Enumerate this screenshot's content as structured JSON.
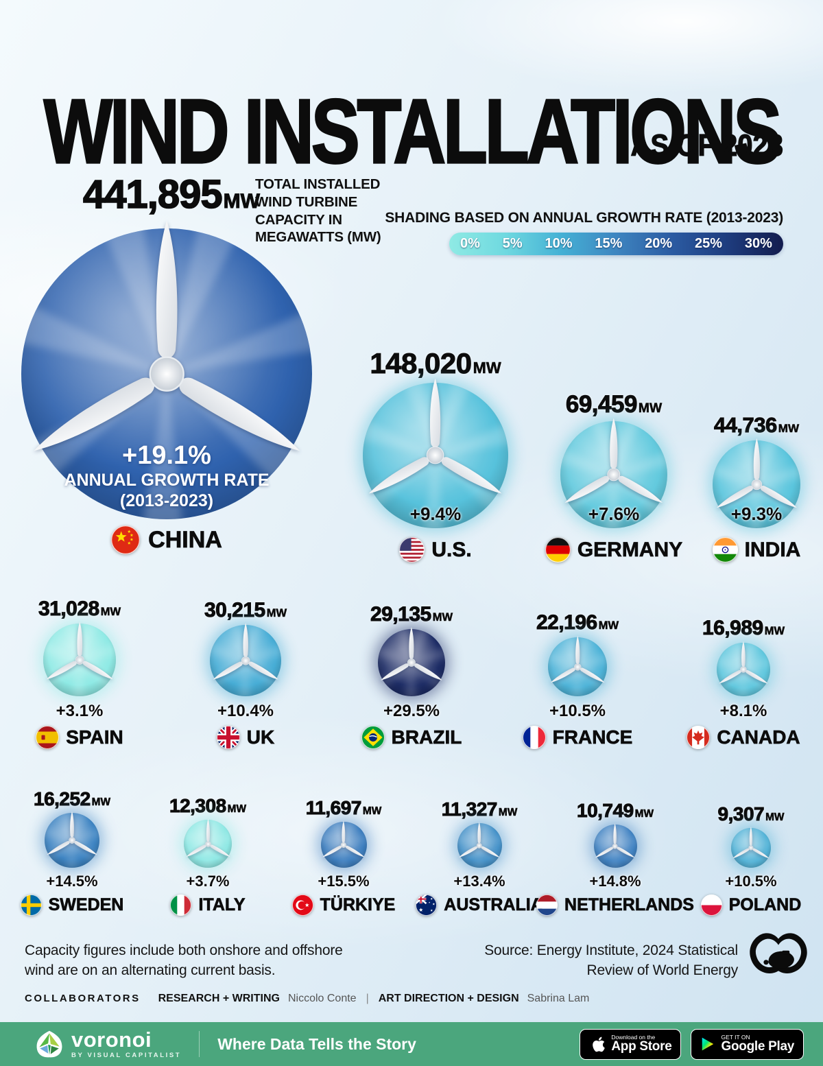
{
  "header": {
    "title": "WIND INSTALLATIONS",
    "subtitle": "AS OF 2023"
  },
  "annotation": {
    "capacity_note": "TOTAL INSTALLED WIND TURBINE CAPACITY IN MEGAWATTS (MW)"
  },
  "legend": {
    "label": "SHADING BASED ON ANNUAL GROWTH RATE (2013-2023)",
    "gradient": [
      "#8feae4",
      "#6fd9e0",
      "#45b1d5",
      "#3e85c0",
      "#2b5ba2",
      "#1e3c7e",
      "#131c4e"
    ]
  },
  "hero": {
    "growth_caption_1": "ANNUAL GROWTH RATE",
    "growth_caption_2": "(2013-2023)"
  },
  "footer": {
    "note_line1": "Capacity figures include both onshore and offshore",
    "note_line2": "wind are on an alternating current basis.",
    "source_line1": "Source: Energy Institute, 2024 Statistical",
    "source_line2": "Review of World Energy"
  },
  "collaborators": {
    "heading": "COLLABORATORS",
    "role1": "RESEARCH + WRITING",
    "name1": "Niccolo Conte",
    "divider": "|",
    "role2": "ART DIRECTION + DESIGN",
    "name2": "Sabrina Lam"
  },
  "bottom_bar": {
    "brand": "voronoi",
    "brand_sub": "BY VISUAL CAPITALIST",
    "tagline": "Where Data Tells the Story",
    "appstore_small": "Download on the",
    "appstore_big": "App Store",
    "gplay_small": "GET IT ON",
    "gplay_big": "Google Play",
    "bg_color": "#4ba67d"
  },
  "chart_data": {
    "type": "scatter",
    "variant": "proportional-area bubbles drawn as wind turbines; bubble area ~ installed capacity, shading ~ annual growth rate",
    "title": "WIND INSTALLATIONS",
    "subtitle": "AS OF 2023",
    "unit": "MW",
    "color_scale_label": "SHADING BASED ON ANNUAL GROWTH RATE (2013-2023)",
    "color_scale_ticks": [
      "0%",
      "5%",
      "10%",
      "15%",
      "20%",
      "25%",
      "30%"
    ],
    "countries": [
      {
        "id": "china",
        "name": "CHINA",
        "capacity_mw": 441895,
        "capacity_label": "441,895",
        "growth_pct": 19.1,
        "growth_label": "+19.1%",
        "color": "#2f62ae",
        "diameter": 424,
        "row": 0
      },
      {
        "id": "us",
        "name": "U.S.",
        "capacity_mw": 148020,
        "capacity_label": "148,020",
        "growth_pct": 9.4,
        "growth_label": "+9.4%",
        "color": "#57c2dc",
        "diameter": 212,
        "row": 1
      },
      {
        "id": "germany",
        "name": "GERMANY",
        "capacity_mw": 69459,
        "capacity_label": "69,459",
        "growth_pct": 7.6,
        "growth_label": "+7.6%",
        "color": "#63cade",
        "diameter": 156,
        "row": 1
      },
      {
        "id": "india",
        "name": "INDIA",
        "capacity_mw": 44736,
        "capacity_label": "44,736",
        "growth_pct": 9.3,
        "growth_label": "+9.3%",
        "color": "#5ac5dd",
        "diameter": 128,
        "row": 1
      },
      {
        "id": "spain",
        "name": "SPAIN",
        "capacity_mw": 31028,
        "capacity_label": "31,028",
        "growth_pct": 3.1,
        "growth_label": "+3.1%",
        "color": "#8feae5",
        "diameter": 106,
        "row": 2
      },
      {
        "id": "uk",
        "name": "UK",
        "capacity_mw": 30215,
        "capacity_label": "30,215",
        "growth_pct": 10.4,
        "growth_label": "+10.4%",
        "color": "#47add6",
        "diameter": 104,
        "row": 2
      },
      {
        "id": "brazil",
        "name": "BRAZIL",
        "capacity_mw": 29135,
        "capacity_label": "29,135",
        "growth_pct": 29.5,
        "growth_label": "+29.5%",
        "color": "#1d2c65",
        "diameter": 98,
        "row": 2
      },
      {
        "id": "france",
        "name": "FRANCE",
        "capacity_mw": 22196,
        "capacity_label": "22,196",
        "growth_pct": 10.5,
        "growth_label": "+10.5%",
        "color": "#4db3d8",
        "diameter": 86,
        "row": 2
      },
      {
        "id": "canada",
        "name": "CANADA",
        "capacity_mw": 16989,
        "capacity_label": "16,989",
        "growth_pct": 8.1,
        "growth_label": "+8.1%",
        "color": "#5fc7de",
        "diameter": 78,
        "row": 2
      },
      {
        "id": "sweden",
        "name": "SWEDEN",
        "capacity_mw": 16252,
        "capacity_label": "16,252",
        "growth_pct": 14.5,
        "growth_label": "+14.5%",
        "color": "#3c83c2",
        "diameter": 80,
        "row": 3
      },
      {
        "id": "italy",
        "name": "ITALY",
        "capacity_mw": 12308,
        "capacity_label": "12,308",
        "growth_pct": 3.7,
        "growth_label": "+3.7%",
        "color": "#8de8e4",
        "diameter": 70,
        "row": 3
      },
      {
        "id": "turkiye",
        "name": "TÜRKIYE",
        "capacity_mw": 11697,
        "capacity_label": "11,697",
        "growth_pct": 15.5,
        "growth_label": "+15.5%",
        "color": "#3a7cbe",
        "diameter": 67,
        "row": 3
      },
      {
        "id": "australia",
        "name": "AUSTRALIA",
        "capacity_mw": 11327,
        "capacity_label": "11,327",
        "growth_pct": 13.4,
        "growth_label": "+13.4%",
        "color": "#4290c8",
        "diameter": 65,
        "row": 3
      },
      {
        "id": "netherlands",
        "name": "NETHERLANDS",
        "capacity_mw": 10749,
        "capacity_label": "10,749",
        "growth_pct": 14.8,
        "growth_label": "+14.8%",
        "color": "#3d80c1",
        "diameter": 63,
        "row": 3
      },
      {
        "id": "poland",
        "name": "POLAND",
        "capacity_mw": 9307,
        "capacity_label": "9,307",
        "growth_pct": 10.5,
        "growth_label": "+10.5%",
        "color": "#4fb1d6",
        "diameter": 58,
        "row": 3
      }
    ]
  }
}
